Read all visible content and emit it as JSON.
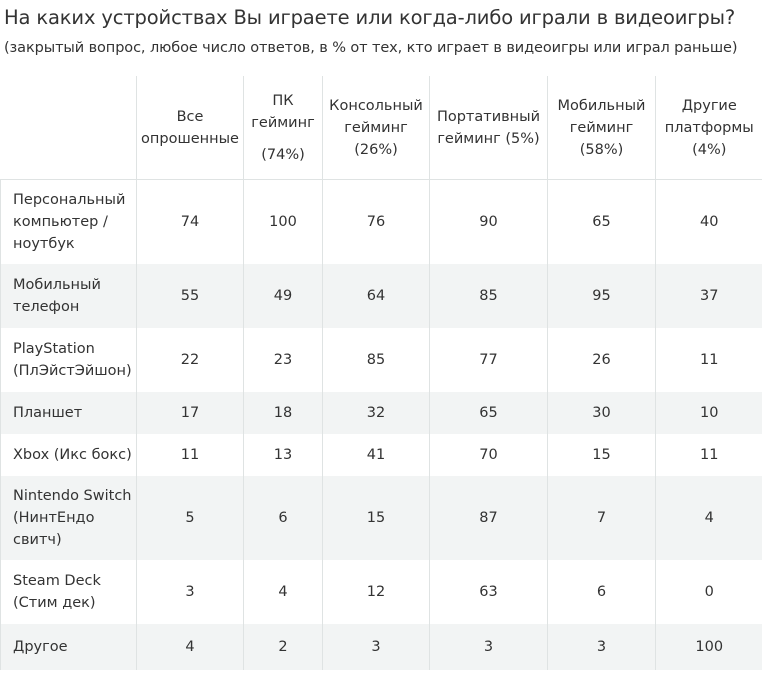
{
  "chart_data": {
    "type": "table",
    "title": "На каких устройствах Вы играете или когда-либо играли в видеоигры?",
    "subtitle": "(закрытый вопрос, любое число ответов, в % от тех, кто играет в видеоигры или играл раньше)",
    "columns": [
      {
        "label": "Все опрошенные",
        "share": ""
      },
      {
        "label": "ПК гейминг",
        "share": "(74%)"
      },
      {
        "label": "Консольный гейминг",
        "share": "(26%)"
      },
      {
        "label": "Портативный гейминг (5%)",
        "share": ""
      },
      {
        "label": "Мобильный гейминг",
        "share": "(58%)"
      },
      {
        "label": "Другие платформы",
        "share": "(4%)"
      }
    ],
    "rows": [
      {
        "label": "Персональный компьютер / ноутбук",
        "values": [
          74,
          100,
          76,
          90,
          65,
          40
        ]
      },
      {
        "label": "Мобильный телефон",
        "values": [
          55,
          49,
          64,
          85,
          95,
          37
        ]
      },
      {
        "label": "PlayStation (ПлЭйстЭйшон)",
        "values": [
          22,
          23,
          85,
          77,
          26,
          11
        ]
      },
      {
        "label": "Планшет",
        "values": [
          17,
          18,
          32,
          65,
          30,
          10
        ]
      },
      {
        "label": "Xbox (Икс бокс)",
        "values": [
          11,
          13,
          41,
          70,
          15,
          11
        ]
      },
      {
        "label": "Nintendo Switch (НинтЕндо свитч)",
        "values": [
          5,
          6,
          15,
          87,
          7,
          4
        ]
      },
      {
        "label": "Steam Deck (Стим дек)",
        "values": [
          3,
          4,
          12,
          63,
          6,
          0
        ]
      },
      {
        "label": "Другое",
        "values": [
          4,
          2,
          3,
          3,
          3,
          100
        ]
      }
    ]
  }
}
